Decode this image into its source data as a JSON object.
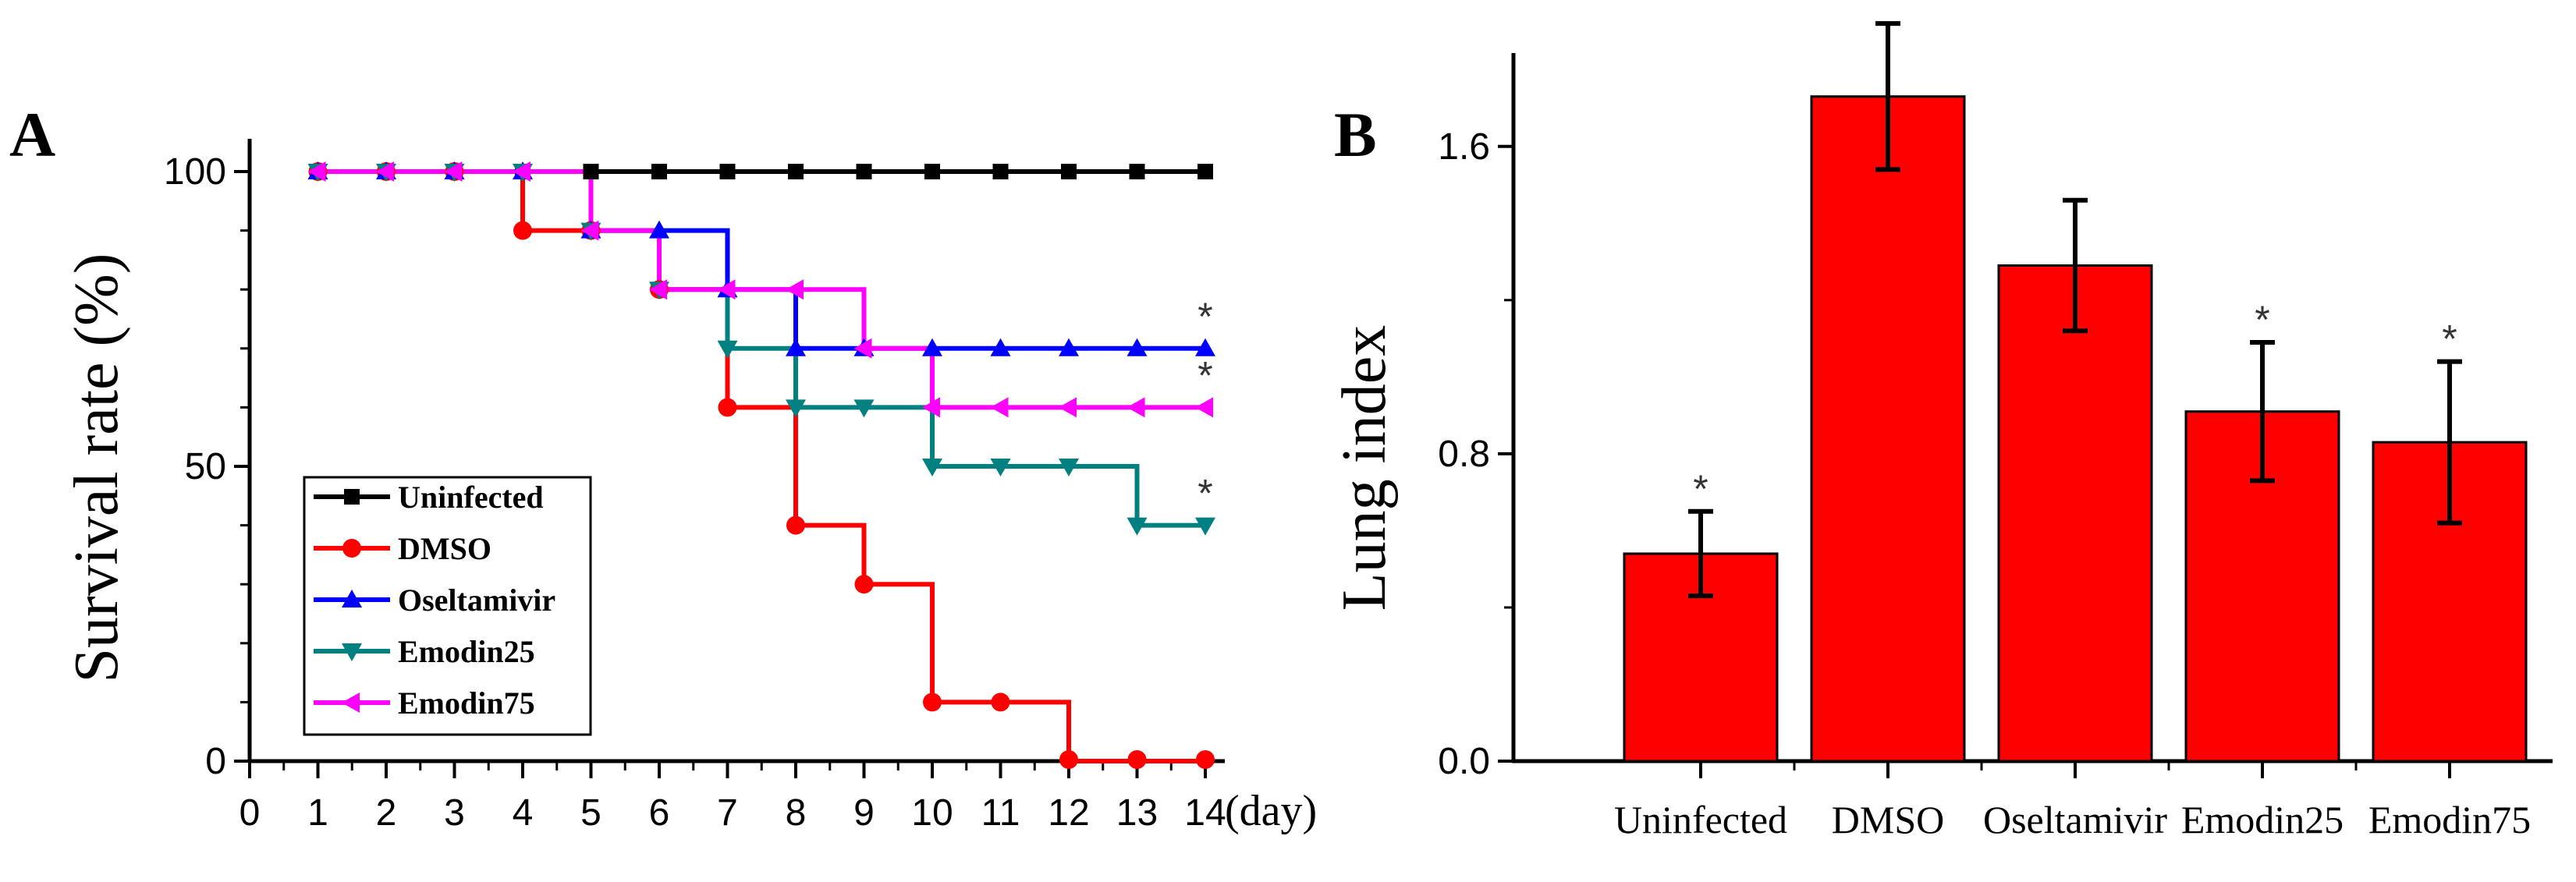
{
  "chart_data": [
    {
      "panel": "A",
      "type": "line",
      "step": true,
      "ylabel": "Survival rate (%)",
      "x_unit": "(day)",
      "xlim": [
        0,
        14
      ],
      "ylim": [
        0,
        100
      ],
      "x_ticks": [
        0,
        1,
        2,
        3,
        4,
        5,
        6,
        7,
        8,
        9,
        10,
        11,
        12,
        13,
        14
      ],
      "y_ticks": [
        0,
        50,
        100
      ],
      "legend_position": "bottom-left",
      "series": [
        {
          "name": "Uninfected",
          "color": "#000000",
          "marker": "square",
          "x": [
            1,
            2,
            3,
            4,
            5,
            6,
            7,
            8,
            9,
            10,
            11,
            12,
            13,
            14
          ],
          "y": [
            100,
            100,
            100,
            100,
            100,
            100,
            100,
            100,
            100,
            100,
            100,
            100,
            100,
            100
          ]
        },
        {
          "name": "DMSO",
          "color": "#ff0000",
          "marker": "circle",
          "x": [
            1,
            2,
            3,
            4,
            5,
            6,
            7,
            8,
            9,
            10,
            11,
            12,
            13,
            14
          ],
          "y": [
            100,
            100,
            100,
            90,
            90,
            80,
            60,
            40,
            30,
            10,
            10,
            0,
            0,
            0
          ]
        },
        {
          "name": "Oseltamivir",
          "color": "#0000ff",
          "marker": "triangle-up",
          "x": [
            1,
            2,
            3,
            4,
            5,
            6,
            7,
            8,
            9,
            10,
            11,
            12,
            13,
            14
          ],
          "y": [
            100,
            100,
            100,
            100,
            90,
            90,
            80,
            70,
            70,
            70,
            70,
            70,
            70,
            70
          ]
        },
        {
          "name": "Emodin25",
          "color": "#008080",
          "marker": "triangle-down",
          "x": [
            1,
            2,
            3,
            4,
            5,
            6,
            7,
            8,
            9,
            10,
            11,
            12,
            13,
            14
          ],
          "y": [
            100,
            100,
            100,
            100,
            90,
            80,
            70,
            60,
            60,
            50,
            50,
            50,
            40,
            40
          ]
        },
        {
          "name": "Emodin75",
          "color": "#ff00ff",
          "marker": "triangle-left",
          "x": [
            1,
            2,
            3,
            4,
            5,
            6,
            7,
            8,
            9,
            10,
            11,
            12,
            13,
            14
          ],
          "y": [
            100,
            100,
            100,
            100,
            90,
            80,
            80,
            80,
            70,
            60,
            60,
            60,
            60,
            60
          ]
        }
      ],
      "annotations": [
        {
          "text": "*",
          "series": "Oseltamivir"
        },
        {
          "text": "*",
          "series": "Emodin75"
        },
        {
          "text": "*",
          "series": "Emodin25"
        }
      ]
    },
    {
      "panel": "B",
      "type": "bar",
      "ylabel": "Lung index",
      "categories": [
        "Uninfected",
        "DMSO",
        "Oseltamivir",
        "Emodin25",
        "Emodin75"
      ],
      "values": [
        0.54,
        1.73,
        1.29,
        0.91,
        0.83
      ],
      "errors": [
        0.11,
        0.19,
        0.17,
        0.18,
        0.21
      ],
      "significant": [
        "*",
        "",
        "",
        "*",
        "*"
      ],
      "ylim": [
        0,
        1.9
      ],
      "y_ticks": [
        0.0,
        0.8,
        1.6
      ],
      "y_tick_labels": [
        "0.0",
        "0.8",
        "1.6"
      ],
      "bar_color": "#ff0000"
    }
  ]
}
